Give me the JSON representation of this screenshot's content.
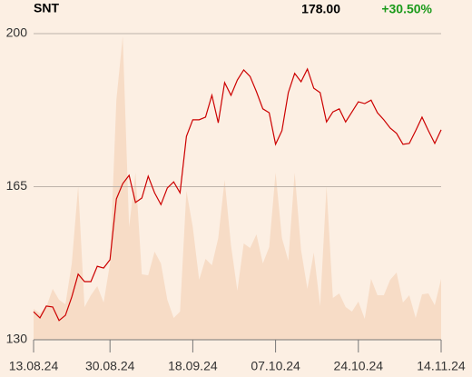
{
  "chart_data": {
    "type": "line",
    "title": "SNT",
    "last_price": "178.00",
    "change": "+30.50%",
    "categories": [
      "13.08.24",
      null,
      null,
      null,
      null,
      null,
      null,
      null,
      null,
      null,
      null,
      null,
      "30.08.24",
      null,
      null,
      null,
      null,
      null,
      null,
      null,
      null,
      null,
      null,
      null,
      null,
      "18.09.24",
      null,
      null,
      null,
      null,
      null,
      null,
      null,
      null,
      null,
      null,
      null,
      null,
      "07.10.24",
      null,
      null,
      null,
      null,
      null,
      null,
      null,
      null,
      null,
      null,
      null,
      null,
      "24.10.24",
      null,
      null,
      null,
      null,
      null,
      null,
      null,
      null,
      null,
      null,
      null,
      null,
      "14.11.24"
    ],
    "series": [
      {
        "name": "Price",
        "color": "#cc0000",
        "values": [
          136.4,
          135.0,
          137.7,
          137.5,
          134.4,
          135.6,
          139.8,
          145.0,
          143.3,
          143.3,
          146.8,
          146.4,
          148.3,
          162.2,
          165.7,
          167.6,
          161.4,
          162.4,
          167.4,
          163.6,
          160.9,
          164.7,
          166.1,
          163.6,
          176.5,
          180.3,
          180.3,
          180.9,
          185.9,
          179.6,
          188.8,
          185.9,
          189.4,
          191.7,
          190.2,
          186.7,
          182.8,
          181.9,
          174.7,
          177.8,
          186.5,
          190.9,
          189.0,
          191.9,
          187.5,
          186.5,
          179.8,
          182.1,
          182.8,
          179.8,
          182.1,
          184.4,
          184.0,
          184.8,
          181.9,
          180.3,
          178.4,
          177.2,
          174.7,
          174.9,
          177.8,
          180.9,
          177.8,
          174.9,
          178.0
        ]
      },
      {
        "name": "Volume",
        "color": "#f7dcc6",
        "axis": "y2",
        "values": [
          34,
          29,
          36,
          56,
          44,
          39,
          84,
          169,
          36,
          49,
          59,
          41,
          84,
          264,
          334,
          124,
          184,
          72,
          71,
          97,
          84,
          44,
          24,
          31,
          164,
          124,
          66,
          89,
          82,
          112,
          176,
          104,
          54,
          106,
          101,
          116,
          84,
          102,
          184,
          112,
          87,
          184,
          99,
          56,
          96,
          37,
          169,
          46,
          51,
          36,
          31,
          42,
          23,
          67,
          49,
          49,
          66,
          74,
          41,
          49,
          24,
          50,
          51,
          38,
          67
        ]
      }
    ],
    "ylim": [
      130,
      200
    ],
    "yticks": [
      130,
      165,
      200
    ],
    "y2lim": [
      0,
      337
    ],
    "grid": true,
    "change_color": "#1a9a1a"
  }
}
